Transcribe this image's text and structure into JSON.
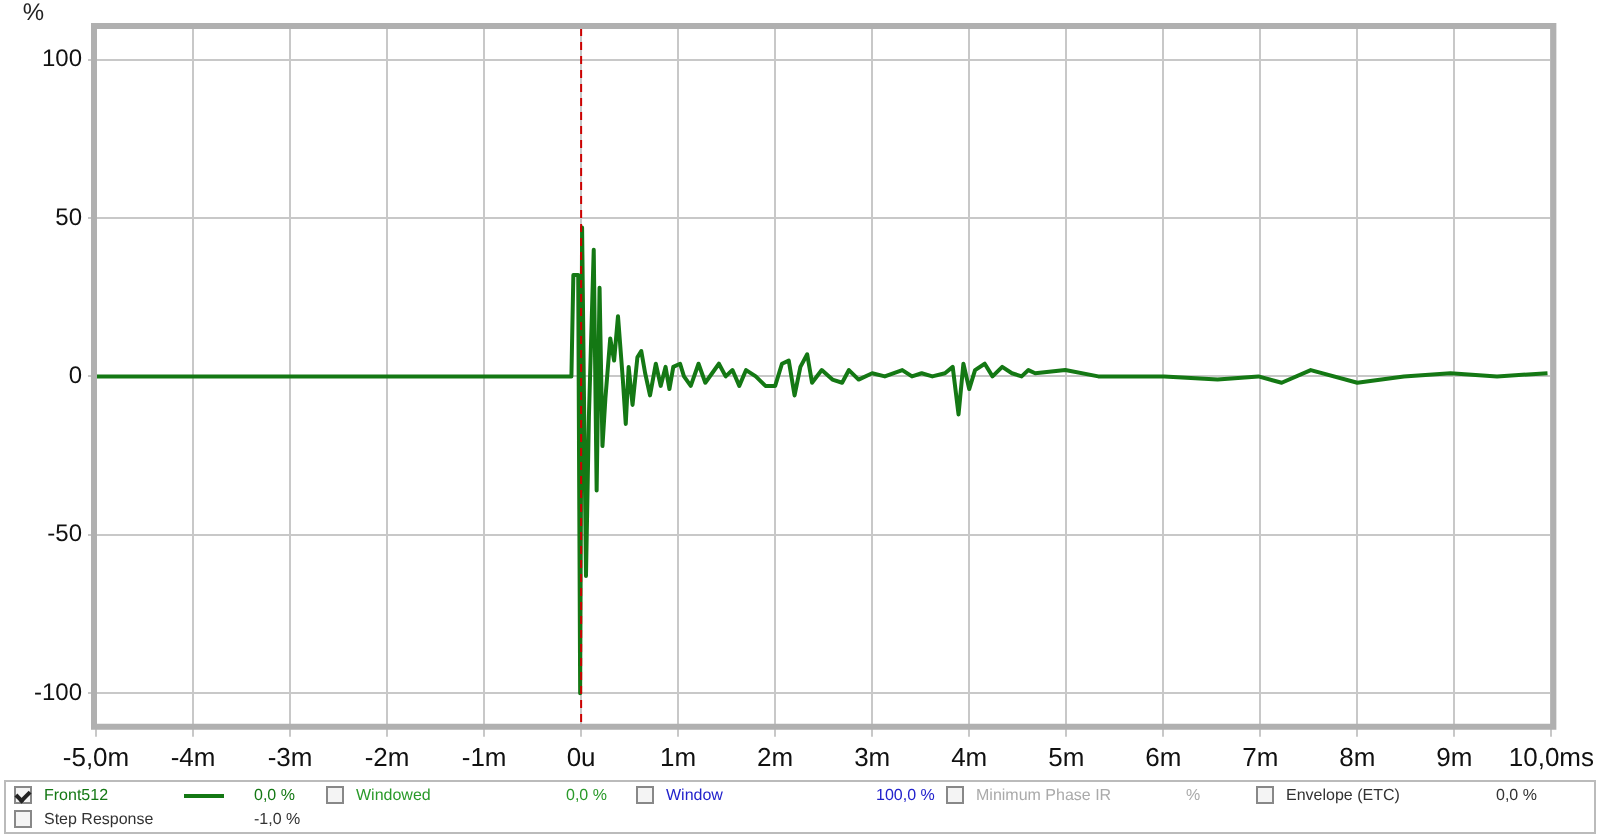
{
  "chart_data": {
    "type": "line",
    "ylabel": "%",
    "xlim": [
      -5,
      10
    ],
    "xticks": [
      {
        "value": -5,
        "label": "-5,0m"
      },
      {
        "value": -4,
        "label": "-4m"
      },
      {
        "value": -3,
        "label": "-3m"
      },
      {
        "value": -2,
        "label": "-2m"
      },
      {
        "value": -1,
        "label": "-1m"
      },
      {
        "value": 0,
        "label": "0u"
      },
      {
        "value": 1,
        "label": "1m"
      },
      {
        "value": 2,
        "label": "2m"
      },
      {
        "value": 3,
        "label": "3m"
      },
      {
        "value": 4,
        "label": "4m"
      },
      {
        "value": 5,
        "label": "5m"
      },
      {
        "value": 6,
        "label": "6m"
      },
      {
        "value": 7,
        "label": "7m"
      },
      {
        "value": 8,
        "label": "8m"
      },
      {
        "value": 9,
        "label": "9m"
      },
      {
        "value": 10,
        "label": "10,0ms"
      }
    ],
    "ylim": [
      -110,
      110
    ],
    "yticks": [
      -100,
      -50,
      0,
      50,
      100
    ],
    "grid": true,
    "legend": "bottom",
    "marker": "none",
    "line_style": "solid",
    "ref_lines": [
      {
        "axis": "x",
        "value": 0,
        "color": "#cc0000",
        "line_style": "dashed"
      }
    ],
    "annotations": [
      "0,0 %",
      "Windowed",
      "0,0 %",
      "Window",
      "100,0 %",
      "Minimum Phase IR",
      "%",
      "Envelope (ETC)",
      "0,0 %",
      "Step Response",
      "-1,0 %"
    ],
    "series": [
      {
        "name": "Front512",
        "color": "#147814",
        "x": [
          -5,
          -0.1,
          -0.08,
          -0.03,
          -0.01,
          0.01,
          0.05,
          0.08,
          0.13,
          0.16,
          0.19,
          0.22,
          0.25,
          0.3,
          0.34,
          0.38,
          0.43,
          0.46,
          0.49,
          0.53,
          0.58,
          0.62,
          0.66,
          0.71,
          0.77,
          0.82,
          0.87,
          0.91,
          0.95,
          1.02,
          1.06,
          1.13,
          1.21,
          1.28,
          1.35,
          1.42,
          1.49,
          1.56,
          1.63,
          1.7,
          1.8,
          1.9,
          2,
          2.07,
          2.14,
          2.2,
          2.26,
          2.33,
          2.38,
          2.48,
          2.59,
          2.69,
          2.76,
          2.86,
          3,
          3.13,
          3.31,
          3.41,
          3.51,
          3.62,
          3.75,
          3.83,
          3.89,
          3.94,
          4,
          4.06,
          4.16,
          4.24,
          4.34,
          4.44,
          4.54,
          4.61,
          4.68,
          4.99,
          5.33,
          6.01,
          6.56,
          6.98,
          7.22,
          7.52,
          8,
          8.48,
          8.96,
          9.44,
          9.96
        ],
        "values": [
          0,
          0,
          32,
          32,
          -100,
          47,
          -63,
          -13,
          40,
          -36,
          28,
          -22,
          -7,
          12,
          5,
          19,
          -1,
          -15,
          3,
          -9,
          6,
          8,
          1,
          -6,
          4,
          -3,
          3,
          -4,
          3,
          4,
          0,
          -3,
          4,
          -2,
          1,
          4,
          0,
          2,
          -3,
          2,
          0,
          -3,
          -3,
          4,
          5,
          -6,
          3,
          7,
          -2,
          2,
          -1,
          -2,
          2,
          -1,
          1,
          0,
          2,
          0,
          1,
          0,
          1,
          3,
          -12,
          4,
          -4,
          2,
          4,
          0,
          3,
          1,
          0,
          2,
          1,
          2,
          0,
          0,
          -1,
          0,
          -2,
          2,
          -2,
          0,
          1,
          0,
          1
        ]
      }
    ]
  }
}
